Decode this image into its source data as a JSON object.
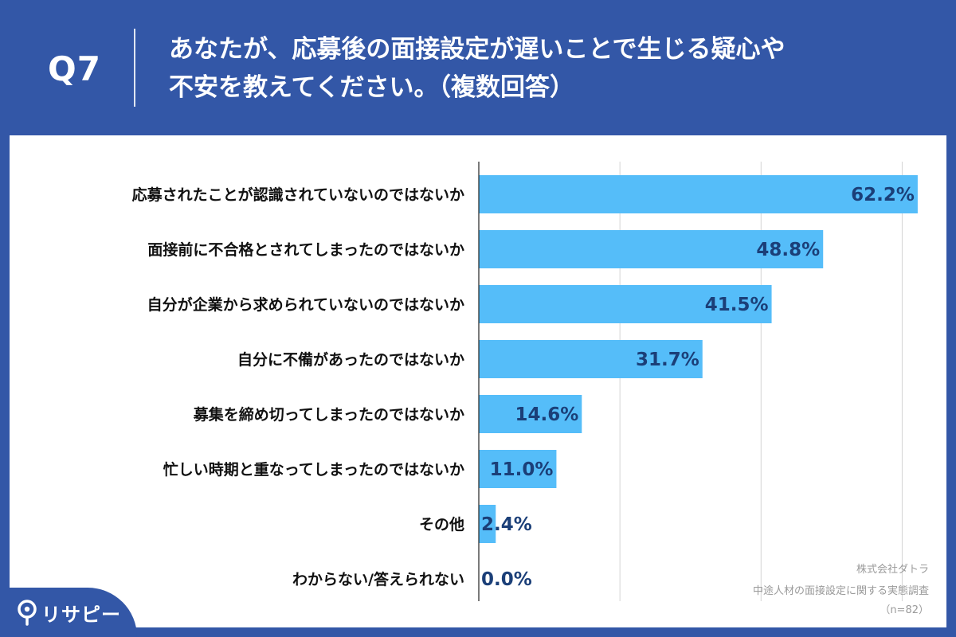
{
  "header": {
    "question_number": "Q7",
    "question_line1": "あなたが、応募後の面接設定が遅いことで生じる疑心や",
    "question_line2": "不安を教えてください。（複数回答）"
  },
  "chart_data": {
    "type": "bar",
    "orientation": "horizontal",
    "categories": [
      "応募されたことが認識されていないのではないか",
      "面接前に不合格とされてしまったのではないか",
      "自分が企業から求められていないのではないか",
      "自分に不備があったのではないか",
      "募集を締め切ってしまったのではないか",
      "忙しい時期と重なってしまったのではないか",
      "その他",
      "わからない/答えられない"
    ],
    "values": [
      62.2,
      48.8,
      41.5,
      31.7,
      14.6,
      11.0,
      2.4,
      0.0
    ],
    "value_labels": [
      "62.2%",
      "48.8%",
      "41.5%",
      "31.7%",
      "14.6%",
      "11.0%",
      "2.4%",
      "0.0%"
    ],
    "xlim": [
      0,
      70
    ],
    "grid": true,
    "bar_color": "#55bdf9",
    "label_color": "#1b3f78"
  },
  "credits": {
    "company": "株式会社ダトラ",
    "survey": "中途人材の面接設定に関する実態調査",
    "sample": "（n=82）"
  },
  "brand": {
    "icon": "location-pin-icon",
    "name": "リサピー"
  },
  "colors": {
    "background": "#3357a7",
    "panel": "#ffffff"
  }
}
